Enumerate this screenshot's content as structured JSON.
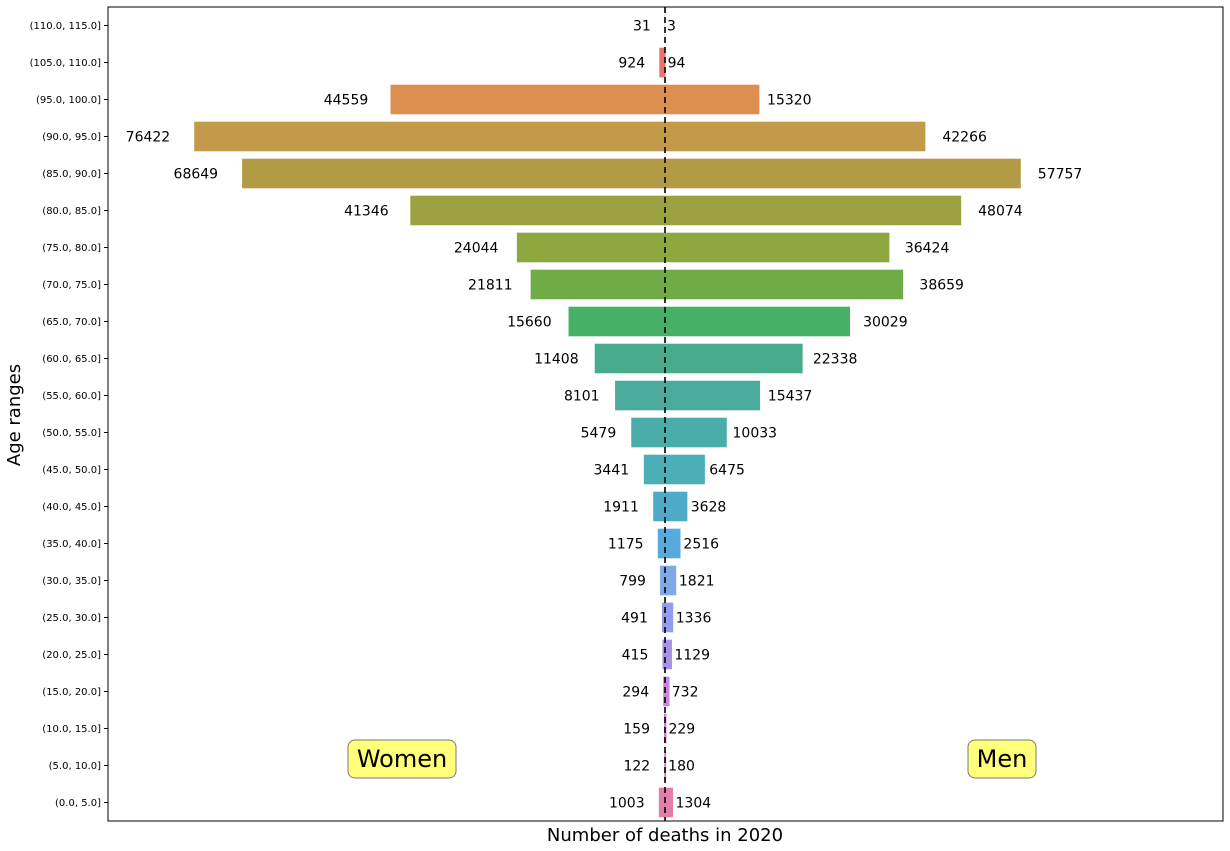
{
  "chart_data": {
    "type": "bar",
    "orientation": "horizontal-population-pyramid",
    "title": "",
    "xlabel": "Number of deaths in 2020",
    "ylabel": "Age ranges",
    "categories": [
      "(0.0, 5.0]",
      "(5.0, 10.0]",
      "(10.0, 15.0]",
      "(15.0, 20.0]",
      "(20.0, 25.0]",
      "(25.0, 30.0]",
      "(30.0, 35.0]",
      "(35.0, 40.0]",
      "(40.0, 45.0]",
      "(45.0, 50.0]",
      "(50.0, 55.0]",
      "(55.0, 60.0]",
      "(60.0, 65.0]",
      "(65.0, 70.0]",
      "(70.0, 75.0]",
      "(75.0, 80.0]",
      "(80.0, 85.0]",
      "(85.0, 90.0]",
      "(90.0, 95.0]",
      "(95.0, 100.0]",
      "(105.0, 110.0]",
      "(110.0, 115.0]"
    ],
    "series": [
      {
        "side": "left",
        "values": [
          1003,
          122,
          159,
          294,
          415,
          491,
          799,
          1175,
          1911,
          3441,
          5479,
          8101,
          11408,
          15660,
          21811,
          24044,
          41346,
          68649,
          76422,
          44559,
          924,
          31
        ]
      },
      {
        "side": "right",
        "values": [
          1304,
          180,
          229,
          732,
          1129,
          1336,
          1821,
          2516,
          3628,
          6475,
          10033,
          15437,
          22338,
          30029,
          38659,
          36424,
          48074,
          57757,
          42266,
          15320,
          94,
          3
        ]
      }
    ],
    "colors": [
      "#e17fa8",
      "#e57ab8",
      "#d87bd0",
      "#c786e0",
      "#a792e4",
      "#939dea",
      "#7faae6",
      "#58a9dc",
      "#4eaac6",
      "#4caeb6",
      "#4aada9",
      "#4aab9c",
      "#48ac8c",
      "#47b067",
      "#6fac45",
      "#8ea73f",
      "#9ca142",
      "#b39b45",
      "#c39a49",
      "#dc8f4e",
      "#e8746d",
      "#e8746d"
    ],
    "center_line": {
      "x": 0,
      "style": "dashed",
      "color": "#000000"
    },
    "xlim": [
      -86000,
      95000
    ],
    "grid": false,
    "annotations": [
      {
        "text": "Women",
        "position": "bottom-left",
        "background": "#ffff7a"
      },
      {
        "text": "Men",
        "position": "bottom-right",
        "background": "#ffff7a"
      }
    ]
  }
}
